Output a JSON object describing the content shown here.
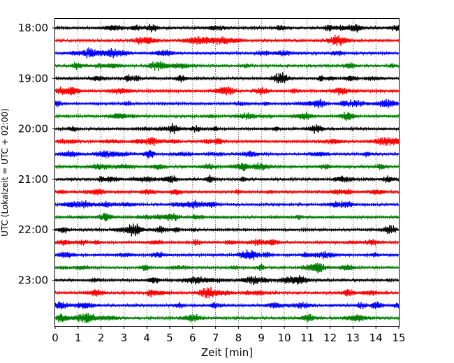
{
  "chart_data": {
    "type": "line",
    "title": "",
    "xlabel": "Zeit  [min]",
    "ylabel": "UTC (Lokalzeit = UTC + 02:00)",
    "xlim": [
      0,
      15
    ],
    "x_ticks": [
      "0",
      "1",
      "2",
      "3",
      "4",
      "5",
      "6",
      "7",
      "8",
      "9",
      "10",
      "11",
      "12",
      "13",
      "14",
      "15"
    ],
    "y_ticks": [
      "18:00",
      "19:00",
      "20:00",
      "21:00",
      "22:00",
      "23:00"
    ],
    "grid": "vertical dotted at each minute",
    "trace_interval_minutes": 15,
    "start_time": "18:00",
    "end_time": "23:45",
    "trace_count": 24,
    "color_cycle": [
      "#000000",
      "#ff0000",
      "#0000ff",
      "#007f00"
    ],
    "series": [
      {
        "start": "18:00"
      },
      {
        "start": "18:15"
      },
      {
        "start": "18:30"
      },
      {
        "start": "18:45"
      },
      {
        "start": "19:00"
      },
      {
        "start": "19:15"
      },
      {
        "start": "19:30"
      },
      {
        "start": "19:45"
      },
      {
        "start": "20:00"
      },
      {
        "start": "20:15"
      },
      {
        "start": "20:30"
      },
      {
        "start": "20:45"
      },
      {
        "start": "21:00"
      },
      {
        "start": "21:15"
      },
      {
        "start": "21:30"
      },
      {
        "start": "21:45"
      },
      {
        "start": "22:00"
      },
      {
        "start": "22:15"
      },
      {
        "start": "22:30"
      },
      {
        "start": "22:45"
      },
      {
        "start": "23:00"
      },
      {
        "start": "23:15"
      },
      {
        "start": "23:30"
      },
      {
        "start": "23:45"
      }
    ]
  }
}
